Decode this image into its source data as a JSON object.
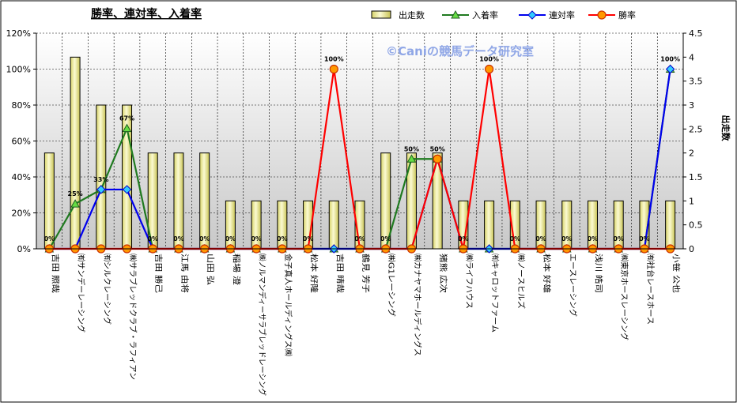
{
  "chart_data": {
    "type": "bar",
    "title": "勝率、連対率、入着率",
    "watermark": "©Caniの競馬データ研究室",
    "y2label": "出走数",
    "ylim": [
      0,
      120
    ],
    "y2lim": [
      0,
      4.5
    ],
    "y_ticks": [
      "0%",
      "20%",
      "40%",
      "60%",
      "80%",
      "100%",
      "120%"
    ],
    "y2_ticks": [
      "0",
      "0.5",
      "1",
      "1.5",
      "2",
      "2.5",
      "3",
      "3.5",
      "4",
      "4.5"
    ],
    "categories": [
      "吉田 照哉",
      "㈲サンデーレーシング",
      "㈲シルクレーシング",
      "㈱サラブレッドクラブ・ラフィアン",
      "吉田 勝己",
      "江馬 由将",
      "山田 弘",
      "稲場 澄",
      "㈱ノルマンディーサラブレッドレーシング",
      "金子真人ホールディングス㈱",
      "松本 好隆",
      "吉田 晴哉",
      "鶴見 芳子",
      "㈱G1レーシング",
      "㈱カナヤマホールディングス",
      "猪熊 広次",
      "㈱ライフハウス",
      "㈲キャロットファーム",
      "㈱ノースヒルズ",
      "松本 好雄",
      "エースレーシング",
      "浅川 皓司",
      "㈱東京ホースレーシング",
      "㈲社台レースホース",
      "小笹 公也"
    ],
    "series": [
      {
        "name": "出走数",
        "kind": "bar",
        "axis": "right",
        "color": "#f2f0a0",
        "values": [
          2,
          4,
          3,
          3,
          2,
          2,
          2,
          1,
          1,
          1,
          1,
          1,
          1,
          2,
          2,
          2,
          1,
          1,
          1,
          1,
          1,
          1,
          1,
          1,
          1
        ]
      },
      {
        "name": "入着率",
        "kind": "line",
        "marker": "triangle",
        "color": "#1f7a1f",
        "values": [
          0,
          25,
          33,
          67,
          0,
          0,
          0,
          0,
          0,
          0,
          0,
          0,
          0,
          0,
          50,
          50,
          0,
          0,
          0,
          0,
          0,
          0,
          0,
          0,
          100
        ]
      },
      {
        "name": "連対率",
        "kind": "line",
        "marker": "diamond",
        "color": "#0000ee",
        "values": [
          0,
          0,
          33,
          33,
          0,
          0,
          0,
          0,
          0,
          0,
          0,
          0,
          0,
          0,
          0,
          50,
          0,
          0,
          0,
          0,
          0,
          0,
          0,
          0,
          100
        ]
      },
      {
        "name": "勝率",
        "kind": "line",
        "marker": "circle",
        "color": "#ff0000",
        "values": [
          0,
          0,
          0,
          0,
          0,
          0,
          0,
          0,
          0,
          0,
          0,
          100,
          0,
          0,
          0,
          50,
          0,
          100,
          0,
          0,
          0,
          0,
          0,
          0,
          0
        ]
      }
    ],
    "data_labels": [
      "0%",
      "25%",
      "33%",
      "67%",
      "0%",
      "0%",
      "0%",
      "0%",
      "0%",
      "0%",
      "0%",
      "100%",
      "0%",
      "0%",
      "50%",
      "50%",
      "0%",
      "100%",
      "0%",
      "0%",
      "0%",
      "0%",
      "0%",
      "0%",
      "100%"
    ],
    "legend": [
      "出走数",
      "入着率",
      "連対率",
      "勝率"
    ],
    "legend_position": "top",
    "grid": true
  }
}
